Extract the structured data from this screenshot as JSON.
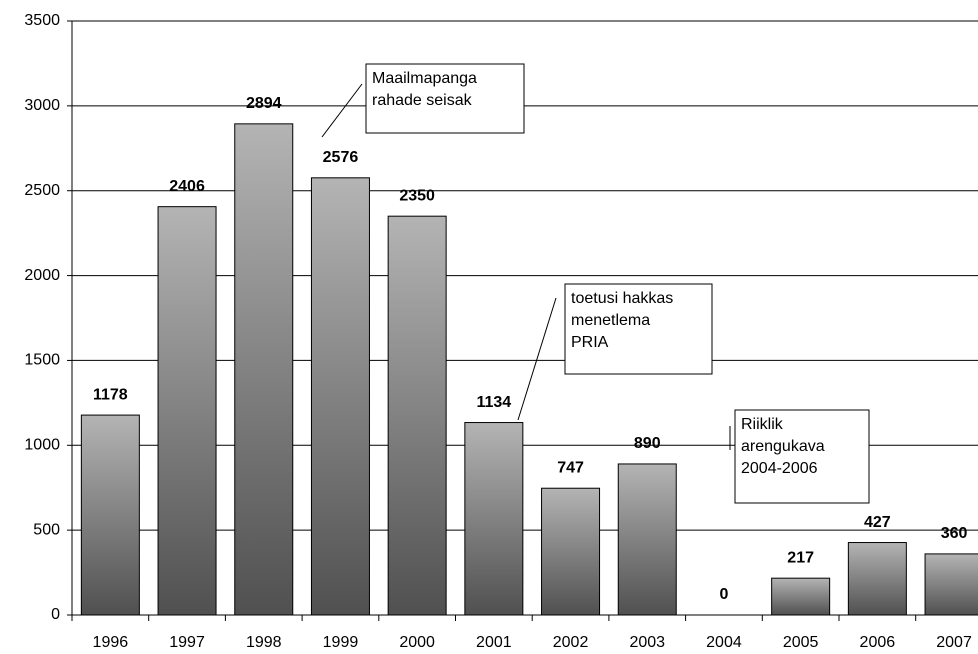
{
  "chart_data": {
    "type": "bar",
    "categories": [
      "1996",
      "1997",
      "1998",
      "1999",
      "2000",
      "2001",
      "2002",
      "2003",
      "2004",
      "2005",
      "2006",
      "2007"
    ],
    "values": [
      1178,
      2406,
      2894,
      2576,
      2350,
      1134,
      747,
      890,
      0,
      217,
      427,
      360
    ],
    "ylim": [
      0,
      3500
    ],
    "yticks": [
      0,
      500,
      1000,
      1500,
      2000,
      2500,
      3000,
      3500
    ],
    "grid": true,
    "annotations": [
      {
        "lines": [
          "Maailmapanga",
          "rahade seisak"
        ]
      },
      {
        "lines": [
          "toetusi hakkas",
          "menetlema",
          "PRIA"
        ]
      },
      {
        "lines": [
          "Riiklik",
          "arengukava",
          "2004-2006"
        ]
      }
    ]
  }
}
